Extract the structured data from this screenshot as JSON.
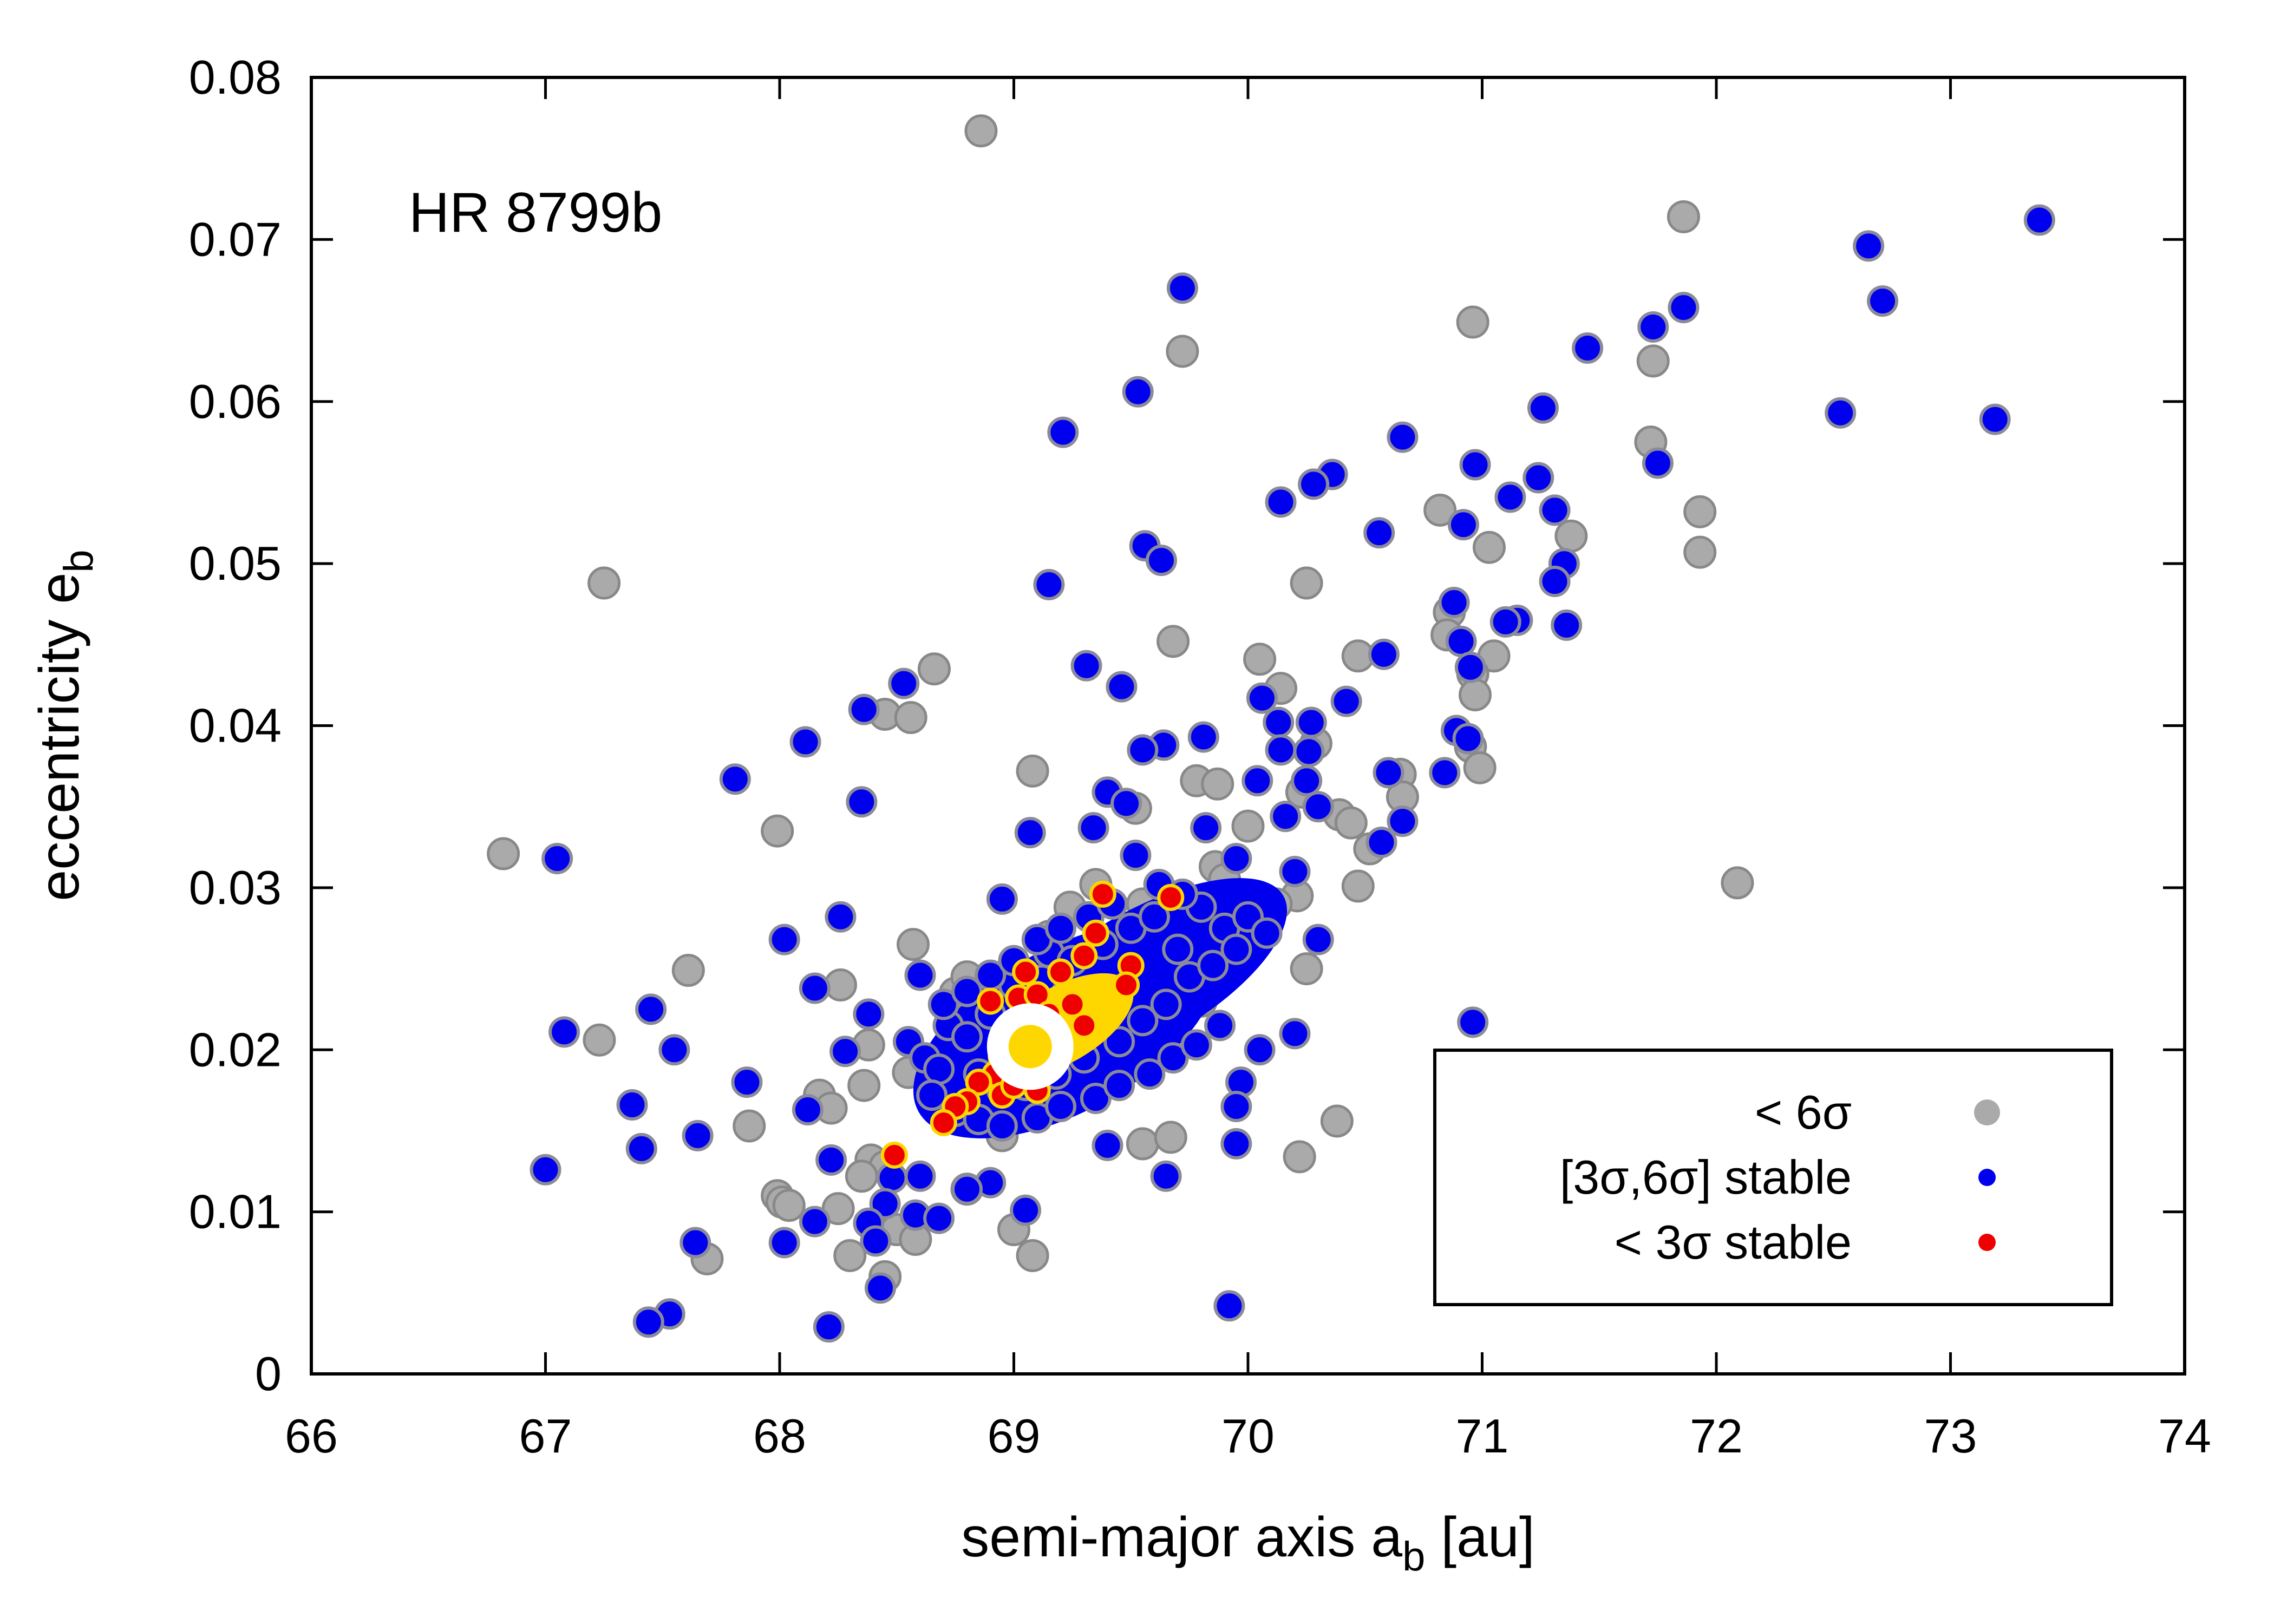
{
  "chart_data": {
    "type": "scatter",
    "title": "",
    "annotation": "HR 8799b",
    "xlabel": {
      "main": "semi-major axis a",
      "sub": "b",
      "unit": " [au]"
    },
    "ylabel": {
      "main": "eccentricity e",
      "sub": "b"
    },
    "xlim": [
      66,
      74
    ],
    "ylim": [
      0,
      0.08
    ],
    "xticks": [
      66,
      67,
      68,
      69,
      70,
      71,
      72,
      73,
      74
    ],
    "xtick_labels": [
      "66",
      "67",
      "68",
      "69",
      "70",
      "71",
      "72",
      "73",
      "74"
    ],
    "yticks": [
      0,
      0.01,
      0.02,
      0.03,
      0.04,
      0.05,
      0.06,
      0.07,
      0.08
    ],
    "ytick_labels": [
      "0",
      "0.01",
      "0.02",
      "0.03",
      "0.04",
      "0.05",
      "0.06",
      "0.07",
      "0.08"
    ],
    "grid": false,
    "legend": {
      "placement": "bottom-right",
      "entries": [
        {
          "label": "< 6σ",
          "color": "#aaaaaa"
        },
        {
          "label": "[3σ,6σ] stable",
          "color": "#0000ee"
        },
        {
          "label": "< 3σ stable",
          "color": "#ee0000"
        }
      ]
    },
    "colors": {
      "grey_fill": "#aaaaaa",
      "grey_stroke": "#888888",
      "blue_fill": "#0000ee",
      "blue_stroke": "#8a8a9a",
      "red_fill": "#ee0000",
      "red_stroke": "#ffd700",
      "gold": "#ffd700",
      "best_fit_halo": "#ffffff"
    },
    "best_fit": {
      "x": 69.07,
      "y": 0.0202
    },
    "series": [
      {
        "name": "< 6σ",
        "points": [
          [
            68.86,
            0.0767
          ],
          [
            71.86,
            0.0714
          ],
          [
            70.96,
            0.0649
          ],
          [
            69.72,
            0.0631
          ],
          [
            71.73,
            0.0625
          ],
          [
            71.72,
            0.0575
          ],
          [
            70.82,
            0.0533
          ],
          [
            71.93,
            0.0532
          ],
          [
            71.38,
            0.0517
          ],
          [
            71.03,
            0.051
          ],
          [
            71.93,
            0.0507
          ],
          [
            67.25,
            0.0488
          ],
          [
            70.25,
            0.0488
          ],
          [
            70.86,
            0.047
          ],
          [
            70.85,
            0.0456
          ],
          [
            69.68,
            0.0452
          ],
          [
            70.47,
            0.0443
          ],
          [
            71.05,
            0.0443
          ],
          [
            70.05,
            0.0441
          ],
          [
            68.66,
            0.0435
          ],
          [
            70.96,
            0.0432
          ],
          [
            70.14,
            0.0423
          ],
          [
            70.97,
            0.0419
          ],
          [
            68.45,
            0.0407
          ],
          [
            68.56,
            0.0405
          ],
          [
            70.29,
            0.0389
          ],
          [
            70.95,
            0.0387
          ],
          [
            70.99,
            0.0374
          ],
          [
            69.08,
            0.0372
          ],
          [
            70.65,
            0.037
          ],
          [
            69.78,
            0.0366
          ],
          [
            69.87,
            0.0364
          ],
          [
            70.23,
            0.0359
          ],
          [
            70.66,
            0.0356
          ],
          [
            69.52,
            0.0349
          ],
          [
            70.39,
            0.0345
          ],
          [
            70.44,
            0.034
          ],
          [
            67.99,
            0.0335
          ],
          [
            70.0,
            0.0338
          ],
          [
            70.52,
            0.0324
          ],
          [
            66.82,
            0.0321
          ],
          [
            72.09,
            0.0303
          ],
          [
            70.47,
            0.0301
          ],
          [
            69.86,
            0.0313
          ],
          [
            70.21,
            0.0295
          ],
          [
            70.12,
            0.029
          ],
          [
            69.99,
            0.0282
          ],
          [
            69.76,
            0.0276
          ],
          [
            69.68,
            0.0284
          ],
          [
            69.55,
            0.029
          ],
          [
            69.35,
            0.0302
          ],
          [
            69.24,
            0.0288
          ],
          [
            69.45,
            0.0268
          ],
          [
            68.57,
            0.0265
          ],
          [
            67.61,
            0.0249
          ],
          [
            68.26,
            0.024
          ],
          [
            68.75,
            0.0235
          ],
          [
            69.05,
            0.0231
          ],
          [
            67.23,
            0.0206
          ],
          [
            68.38,
            0.0203
          ],
          [
            68.36,
            0.0178
          ],
          [
            68.17,
            0.0172
          ],
          [
            68.22,
            0.0164
          ],
          [
            67.87,
            0.0153
          ],
          [
            70.38,
            0.0156
          ],
          [
            69.55,
            0.0142
          ],
          [
            69.67,
            0.0146
          ],
          [
            70.22,
            0.0134
          ],
          [
            68.39,
            0.0132
          ],
          [
            68.45,
            0.0128
          ],
          [
            68.35,
            0.0122
          ],
          [
            67.99,
            0.011
          ],
          [
            68.01,
            0.0106
          ],
          [
            68.04,
            0.0104
          ],
          [
            68.25,
            0.0102
          ],
          [
            68.5,
            0.0089
          ],
          [
            68.58,
            0.0083
          ],
          [
            68.8,
            0.0114
          ],
          [
            69.0,
            0.0089
          ],
          [
            68.3,
            0.0073
          ],
          [
            67.69,
            0.0071
          ],
          [
            68.45,
            0.006
          ],
          [
            69.08,
            0.0073
          ],
          [
            68.95,
            0.0147
          ],
          [
            68.7,
            0.0192
          ],
          [
            68.55,
            0.0186
          ],
          [
            68.8,
            0.0245
          ],
          [
            69.35,
            0.026
          ],
          [
            69.8,
            0.023
          ],
          [
            70.25,
            0.025
          ],
          [
            69.9,
            0.0305
          ],
          [
            69.15,
            0.027
          ]
        ]
      },
      {
        "name": "[3σ,6σ] stable",
        "points": [
          [
            73.38,
            0.0712
          ],
          [
            72.65,
            0.0696
          ],
          [
            72.71,
            0.0662
          ],
          [
            69.72,
            0.067
          ],
          [
            71.86,
            0.0658
          ],
          [
            71.73,
            0.0646
          ],
          [
            71.45,
            0.0633
          ],
          [
            69.53,
            0.0606
          ],
          [
            71.26,
            0.0596
          ],
          [
            72.53,
            0.0593
          ],
          [
            73.19,
            0.0589
          ],
          [
            69.21,
            0.0581
          ],
          [
            70.66,
            0.0578
          ],
          [
            71.75,
            0.0562
          ],
          [
            70.97,
            0.0561
          ],
          [
            70.36,
            0.0555
          ],
          [
            71.24,
            0.0553
          ],
          [
            70.28,
            0.0549
          ],
          [
            70.14,
            0.0538
          ],
          [
            71.12,
            0.0541
          ],
          [
            71.31,
            0.0533
          ],
          [
            70.92,
            0.0524
          ],
          [
            70.56,
            0.0519
          ],
          [
            69.56,
            0.0511
          ],
          [
            69.63,
            0.0502
          ],
          [
            71.35,
            0.05
          ],
          [
            71.31,
            0.0489
          ],
          [
            69.15,
            0.0487
          ],
          [
            70.88,
            0.0476
          ],
          [
            71.15,
            0.0465
          ],
          [
            71.1,
            0.0464
          ],
          [
            71.36,
            0.0462
          ],
          [
            70.91,
            0.0452
          ],
          [
            70.58,
            0.0444
          ],
          [
            70.95,
            0.0436
          ],
          [
            69.31,
            0.0437
          ],
          [
            68.53,
            0.0426
          ],
          [
            69.46,
            0.0424
          ],
          [
            70.06,
            0.0417
          ],
          [
            70.42,
            0.0415
          ],
          [
            68.36,
            0.041
          ],
          [
            70.13,
            0.0402
          ],
          [
            70.27,
            0.0402
          ],
          [
            70.89,
            0.0397
          ],
          [
            68.11,
            0.039
          ],
          [
            69.81,
            0.0393
          ],
          [
            70.94,
            0.0392
          ],
          [
            69.64,
            0.0388
          ],
          [
            69.55,
            0.0385
          ],
          [
            70.14,
            0.0385
          ],
          [
            70.26,
            0.0384
          ],
          [
            70.84,
            0.0371
          ],
          [
            67.81,
            0.0367
          ],
          [
            70.6,
            0.0371
          ],
          [
            70.04,
            0.0366
          ],
          [
            70.25,
            0.0366
          ],
          [
            69.4,
            0.0359
          ],
          [
            69.48,
            0.0352
          ],
          [
            68.35,
            0.0353
          ],
          [
            70.3,
            0.035
          ],
          [
            70.16,
            0.0344
          ],
          [
            70.66,
            0.0341
          ],
          [
            69.34,
            0.0337
          ],
          [
            69.07,
            0.0334
          ],
          [
            69.82,
            0.0337
          ],
          [
            70.57,
            0.0328
          ],
          [
            67.05,
            0.0318
          ],
          [
            69.52,
            0.032
          ],
          [
            69.95,
            0.0318
          ],
          [
            70.2,
            0.031
          ],
          [
            68.95,
            0.0293
          ],
          [
            70.3,
            0.0268
          ],
          [
            68.02,
            0.0268
          ],
          [
            68.26,
            0.0282
          ],
          [
            69.15,
            0.026
          ],
          [
            68.6,
            0.0246
          ],
          [
            68.15,
            0.0238
          ],
          [
            67.45,
            0.0225
          ],
          [
            68.38,
            0.0222
          ],
          [
            67.08,
            0.0211
          ],
          [
            70.96,
            0.0217
          ],
          [
            70.2,
            0.021
          ],
          [
            67.55,
            0.02
          ],
          [
            68.28,
            0.0199
          ],
          [
            70.05,
            0.02
          ],
          [
            67.86,
            0.018
          ],
          [
            69.97,
            0.018
          ],
          [
            68.12,
            0.0163
          ],
          [
            67.37,
            0.0166
          ],
          [
            69.95,
            0.0165
          ],
          [
            67.65,
            0.0147
          ],
          [
            67.41,
            0.0139
          ],
          [
            69.95,
            0.0142
          ],
          [
            68.22,
            0.0132
          ],
          [
            69.4,
            0.0141
          ],
          [
            67.0,
            0.0126
          ],
          [
            68.48,
            0.0121
          ],
          [
            68.6,
            0.0122
          ],
          [
            69.65,
            0.0122
          ],
          [
            68.9,
            0.0118
          ],
          [
            68.8,
            0.0114
          ],
          [
            68.45,
            0.0105
          ],
          [
            68.58,
            0.0098
          ],
          [
            68.68,
            0.0096
          ],
          [
            69.05,
            0.0101
          ],
          [
            68.15,
            0.0094
          ],
          [
            68.38,
            0.0093
          ],
          [
            68.02,
            0.0081
          ],
          [
            68.41,
            0.0082
          ],
          [
            67.64,
            0.0081
          ],
          [
            68.43,
            0.0053
          ],
          [
            69.92,
            0.0042
          ],
          [
            67.53,
            0.0037
          ],
          [
            67.44,
            0.0032
          ],
          [
            68.21,
            0.0029
          ],
          [
            68.55,
            0.0205
          ],
          [
            68.62,
            0.0195
          ],
          [
            68.68,
            0.0188
          ],
          [
            68.72,
            0.0215
          ],
          [
            68.8,
            0.0208
          ],
          [
            68.85,
            0.0185
          ],
          [
            68.9,
            0.0222
          ],
          [
            68.95,
            0.0175
          ],
          [
            69.0,
            0.024
          ],
          [
            69.05,
            0.0178
          ],
          [
            69.12,
            0.0243
          ],
          [
            69.18,
            0.0185
          ],
          [
            69.25,
            0.0255
          ],
          [
            69.3,
            0.0195
          ],
          [
            69.38,
            0.0265
          ],
          [
            69.45,
            0.0205
          ],
          [
            69.5,
            0.0275
          ],
          [
            69.55,
            0.0218
          ],
          [
            69.6,
            0.0282
          ],
          [
            69.65,
            0.0228
          ],
          [
            69.7,
            0.0262
          ],
          [
            69.75,
            0.0245
          ],
          [
            69.8,
            0.0288
          ],
          [
            69.85,
            0.0252
          ],
          [
            69.9,
            0.0275
          ],
          [
            69.95,
            0.0262
          ],
          [
            70.0,
            0.0282
          ],
          [
            70.08,
            0.0272
          ],
          [
            68.65,
            0.0172
          ],
          [
            68.75,
            0.0162
          ],
          [
            68.85,
            0.0157
          ],
          [
            68.95,
            0.0153
          ],
          [
            69.1,
            0.0158
          ],
          [
            69.2,
            0.0165
          ],
          [
            69.35,
            0.017
          ],
          [
            69.45,
            0.0178
          ],
          [
            69.58,
            0.0185
          ],
          [
            69.68,
            0.0195
          ],
          [
            69.78,
            0.0203
          ],
          [
            69.88,
            0.0215
          ],
          [
            68.7,
            0.0228
          ],
          [
            68.8,
            0.0236
          ],
          [
            68.9,
            0.0246
          ],
          [
            69.0,
            0.0255
          ],
          [
            69.1,
            0.0268
          ],
          [
            69.2,
            0.0275
          ],
          [
            69.32,
            0.0282
          ],
          [
            69.42,
            0.029
          ],
          [
            69.62,
            0.0302
          ],
          [
            69.72,
            0.0296
          ]
        ]
      },
      {
        "name": "< 3σ stable",
        "points": [
          [
            69.38,
            0.0296
          ],
          [
            69.67,
            0.0294
          ],
          [
            69.35,
            0.0272
          ],
          [
            69.3,
            0.0258
          ],
          [
            69.5,
            0.0252
          ],
          [
            69.2,
            0.0248
          ],
          [
            69.05,
            0.0248
          ],
          [
            69.48,
            0.024
          ],
          [
            69.02,
            0.0232
          ],
          [
            69.1,
            0.0234
          ],
          [
            68.9,
            0.023
          ],
          [
            69.25,
            0.0228
          ],
          [
            69.15,
            0.0222
          ],
          [
            69.3,
            0.0215
          ],
          [
            69.2,
            0.0205
          ],
          [
            69.05,
            0.0193
          ],
          [
            68.92,
            0.0185
          ],
          [
            68.85,
            0.018
          ],
          [
            68.95,
            0.0172
          ],
          [
            68.8,
            0.0168
          ],
          [
            68.75,
            0.0165
          ],
          [
            68.7,
            0.0155
          ],
          [
            68.49,
            0.0135
          ],
          [
            69.1,
            0.0175
          ],
          [
            69.0,
            0.0178
          ]
        ]
      }
    ]
  }
}
